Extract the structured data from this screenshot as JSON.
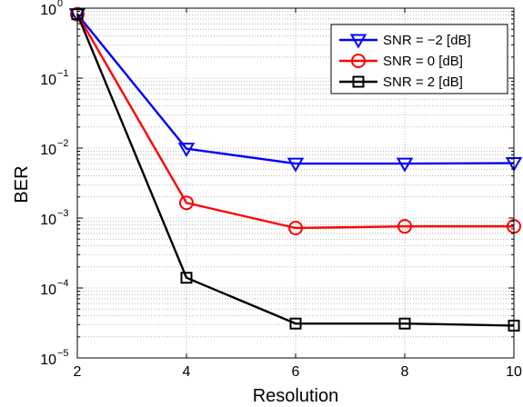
{
  "chart_data": {
    "type": "line",
    "xlabel": "Resolution",
    "ylabel": "BER",
    "xlim": [
      2,
      10
    ],
    "ylim": [
      1e-05,
      1
    ],
    "y_scale": "log",
    "grid": true,
    "legend_position": "top-right",
    "x_ticks": [
      2,
      4,
      6,
      8,
      10
    ],
    "x_tick_labels": [
      "2",
      "4",
      "6",
      "8",
      "10"
    ],
    "y_ticks": [
      {
        "value": 1e-05,
        "base": "10",
        "exp": "−5"
      },
      {
        "value": 0.0001,
        "base": "10",
        "exp": "−4"
      },
      {
        "value": 0.001,
        "base": "10",
        "exp": "−3"
      },
      {
        "value": 0.01,
        "base": "10",
        "exp": "−2"
      },
      {
        "value": 0.1,
        "base": "10",
        "exp": "−1"
      },
      {
        "value": 1,
        "base": "10",
        "exp": "0"
      }
    ],
    "series": [
      {
        "name": "SNR = −2 [dB]",
        "color": "#0000ff",
        "marker": "triangle-down",
        "x": [
          2,
          4,
          6,
          8,
          10
        ],
        "y": [
          0.82,
          0.0098,
          0.006,
          0.006,
          0.0061
        ]
      },
      {
        "name": "SNR = 0 [dB]",
        "color": "#ff0000",
        "marker": "circle",
        "x": [
          2,
          4,
          6,
          8,
          10
        ],
        "y": [
          0.82,
          0.00165,
          0.00072,
          0.00076,
          0.00076
        ]
      },
      {
        "name": "SNR = 2 [dB]",
        "color": "#000000",
        "marker": "square",
        "x": [
          2,
          4,
          6,
          8,
          10
        ],
        "y": [
          0.82,
          0.00014,
          3.1e-05,
          3.1e-05,
          2.9e-05
        ]
      }
    ]
  }
}
